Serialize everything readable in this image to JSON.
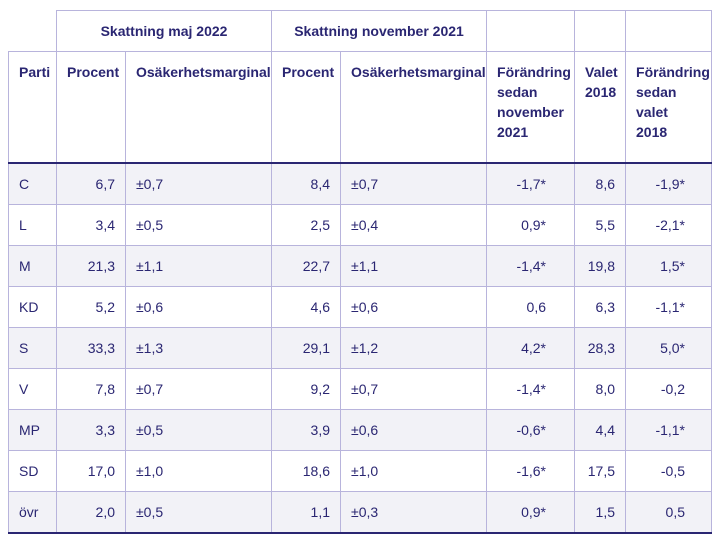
{
  "header": {
    "group_may": "Skattning maj 2022",
    "group_nov": "Skattning november 2021",
    "col_parti": "Parti",
    "col_procent_1": "Procent",
    "col_osak_1": "Osäkerhetsmarginal",
    "col_procent_2": "Procent",
    "col_osak_2": "Osäkerhetsmarginal",
    "col_forandring_nov": "Förändring sedan november 2021",
    "col_valet": "Valet 2018",
    "col_forandring_valet": "Förändring sedan valet 2018"
  },
  "rows": [
    {
      "parti": "C",
      "p1": "6,7",
      "o1": "±0,7",
      "p2": "8,4",
      "o2": "±0,7",
      "chg": "-1,7*",
      "val": "8,6",
      "chg2": "-1,9*"
    },
    {
      "parti": "L",
      "p1": "3,4",
      "o1": "±0,5",
      "p2": "2,5",
      "o2": "±0,4",
      "chg": "0,9*",
      "val": "5,5",
      "chg2": "-2,1*"
    },
    {
      "parti": "M",
      "p1": "21,3",
      "o1": "±1,1",
      "p2": "22,7",
      "o2": "±1,1",
      "chg": "-1,4*",
      "val": "19,8",
      "chg2": "1,5*"
    },
    {
      "parti": "KD",
      "p1": "5,2",
      "o1": "±0,6",
      "p2": "4,6",
      "o2": "±0,6",
      "chg": "0,6",
      "val": "6,3",
      "chg2": "-1,1*"
    },
    {
      "parti": "S",
      "p1": "33,3",
      "o1": "±1,3",
      "p2": "29,1",
      "o2": "±1,2",
      "chg": "4,2*",
      "val": "28,3",
      "chg2": "5,0*"
    },
    {
      "parti": "V",
      "p1": "7,8",
      "o1": "±0,7",
      "p2": "9,2",
      "o2": "±0,7",
      "chg": "-1,4*",
      "val": "8,0",
      "chg2": "-0,2"
    },
    {
      "parti": "MP",
      "p1": "3,3",
      "o1": "±0,5",
      "p2": "3,9",
      "o2": "±0,6",
      "chg": "-0,6*",
      "val": "4,4",
      "chg2": "-1,1*"
    },
    {
      "parti": "SD",
      "p1": "17,0",
      "o1": "±1,0",
      "p2": "18,6",
      "o2": "±1,0",
      "chg": "-1,6*",
      "val": "17,5",
      "chg2": "-0,5"
    },
    {
      "parti": "övr",
      "p1": "2,0",
      "o1": "±0,5",
      "p2": "1,1",
      "o2": "±0,3",
      "chg": "0,9*",
      "val": "1,5",
      "chg2": "0,5"
    }
  ]
}
